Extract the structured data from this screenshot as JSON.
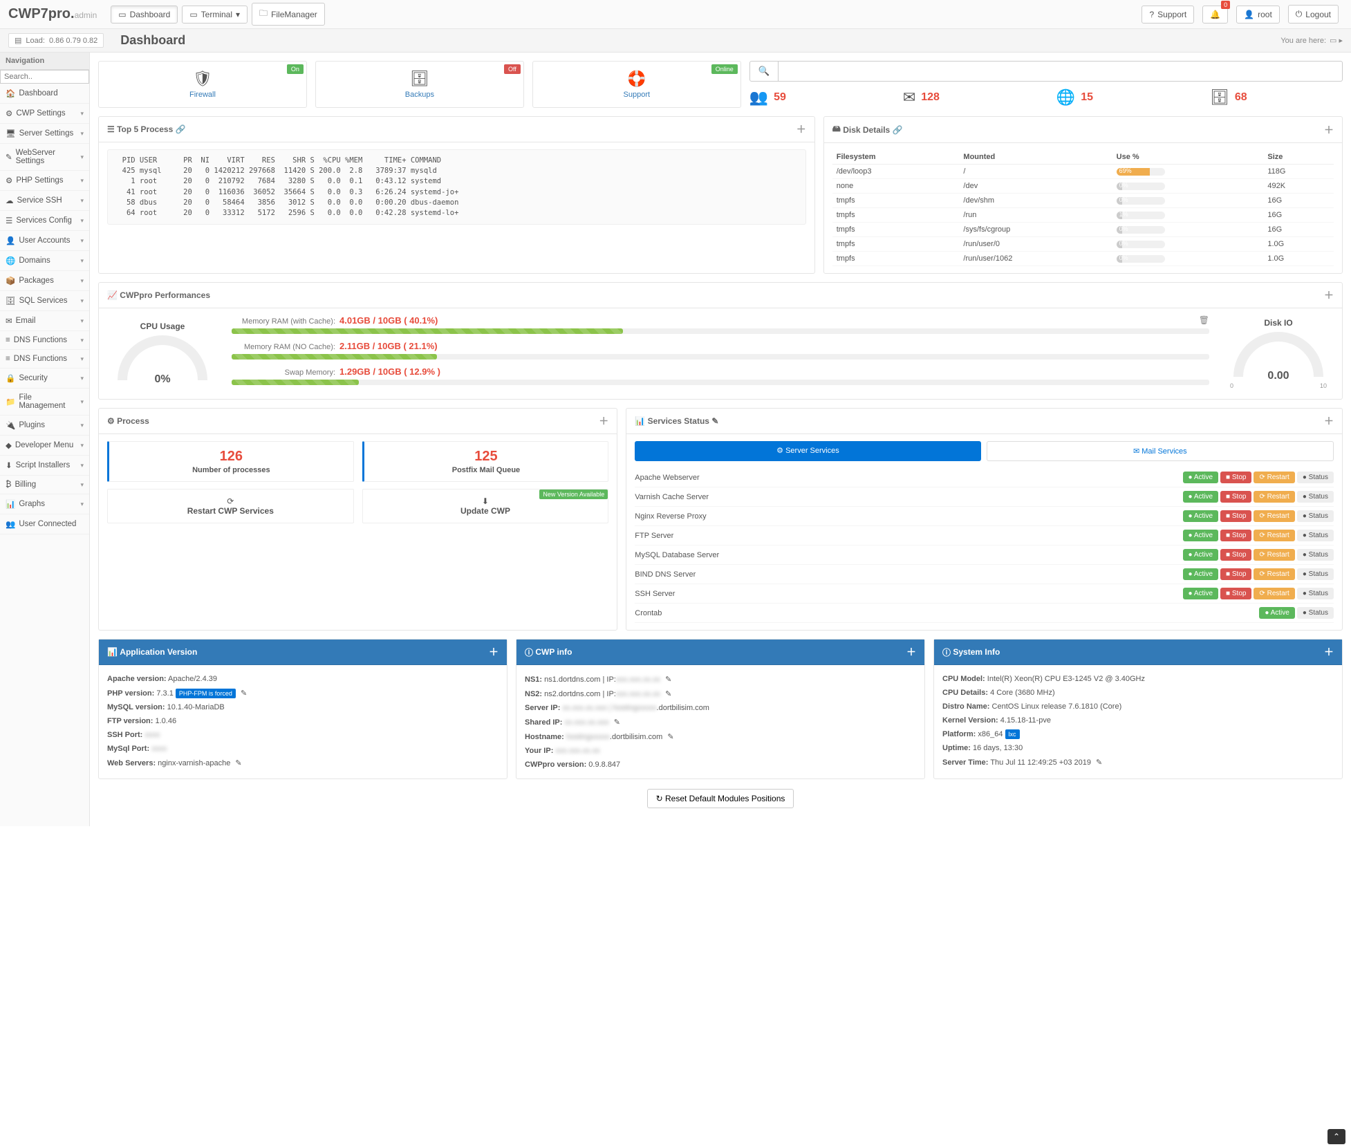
{
  "brand": {
    "main": "CWP7pro.",
    "sub": "admin"
  },
  "topnav": {
    "dashboard": "Dashboard",
    "terminal": "Terminal",
    "filemanager": "FileManager",
    "support": "Support",
    "user": "root",
    "logout": "Logout",
    "notif_count": "0"
  },
  "load": {
    "label": "Load:",
    "values": "0.86  0.79  0.82"
  },
  "page_title": "Dashboard",
  "breadcrumb": "You are here:",
  "sidebar": {
    "search_ph": "Search..",
    "nav_label": "Navigation",
    "items": [
      {
        "label": "Dashboard",
        "icon": "🏠",
        "caret": false
      },
      {
        "label": "CWP Settings",
        "icon": "⚙",
        "caret": true
      },
      {
        "label": "Server Settings",
        "icon": "🖥",
        "caret": true
      },
      {
        "label": "WebServer Settings",
        "icon": "✎",
        "caret": true
      },
      {
        "label": "PHP Settings",
        "icon": "⚙",
        "caret": true
      },
      {
        "label": "Service SSH",
        "icon": "☁",
        "caret": true
      },
      {
        "label": "Services Config",
        "icon": "☰",
        "caret": true
      },
      {
        "label": "User Accounts",
        "icon": "👤",
        "caret": true
      },
      {
        "label": "Domains",
        "icon": "🌐",
        "caret": true
      },
      {
        "label": "Packages",
        "icon": "📦",
        "caret": true
      },
      {
        "label": "SQL Services",
        "icon": "🗄",
        "caret": true
      },
      {
        "label": "Email",
        "icon": "✉",
        "caret": true
      },
      {
        "label": "DNS Functions",
        "icon": "≡",
        "caret": true
      },
      {
        "label": "DNS Functions",
        "icon": "≡",
        "caret": true
      },
      {
        "label": "Security",
        "icon": "🔒",
        "caret": true
      },
      {
        "label": "File Management",
        "icon": "📁",
        "caret": true
      },
      {
        "label": "Plugins",
        "icon": "🔌",
        "caret": true
      },
      {
        "label": "Developer Menu",
        "icon": "◆",
        "caret": true
      },
      {
        "label": "Script Installers",
        "icon": "⬇",
        "caret": true
      },
      {
        "label": "Billing",
        "icon": "₿",
        "caret": true
      },
      {
        "label": "Graphs",
        "icon": "📊",
        "caret": true
      },
      {
        "label": "User Connected",
        "icon": "👥",
        "caret": false
      }
    ]
  },
  "hero": {
    "firewall": {
      "label": "Firewall",
      "status": "On",
      "status_color": "#5cb85c"
    },
    "backups": {
      "label": "Backups",
      "status": "Off",
      "status_color": "#d9534f"
    },
    "support": {
      "label": "Support",
      "status": "Online",
      "status_color": "#5cb85c"
    }
  },
  "stats": {
    "users": "59",
    "mail": "128",
    "domains": "15",
    "db": "68"
  },
  "top5": {
    "title": "Top 5 Process",
    "text": "  PID USER      PR  NI    VIRT    RES    SHR S  %CPU %MEM     TIME+ COMMAND\n  425 mysql     20   0 1420212 297668  11420 S 200.0  2.8   3789:37 mysqld\n    1 root      20   0  210792   7684   3280 S   0.0  0.1   0:43.12 systemd\n   41 root      20   0  116036  36052  35664 S   0.0  0.3   6:26.24 systemd-jo+\n   58 dbus      20   0   58464   3856   3012 S   0.0  0.0   0:00.20 dbus-daemon\n   64 root      20   0   33312   5172   2596 S   0.0  0.0   0:42.28 systemd-lo+"
  },
  "disk": {
    "title": "Disk Details",
    "headers": [
      "Filesystem",
      "Mounted",
      "Use %",
      "Size"
    ],
    "rows": [
      {
        "fs": "/dev/loop3",
        "mnt": "/",
        "pct": 69,
        "pct_color": "#f0ad4e",
        "size": "118G"
      },
      {
        "fs": "none",
        "mnt": "/dev",
        "pct": 0,
        "pct_color": "#ccc",
        "size": "492K"
      },
      {
        "fs": "tmpfs",
        "mnt": "/dev/shm",
        "pct": 0,
        "pct_color": "#ccc",
        "size": "16G"
      },
      {
        "fs": "tmpfs",
        "mnt": "/run",
        "pct": 1,
        "pct_color": "#ccc",
        "size": "16G"
      },
      {
        "fs": "tmpfs",
        "mnt": "/sys/fs/cgroup",
        "pct": 0,
        "pct_color": "#ccc",
        "size": "16G"
      },
      {
        "fs": "tmpfs",
        "mnt": "/run/user/0",
        "pct": 0,
        "pct_color": "#ccc",
        "size": "1.0G"
      },
      {
        "fs": "tmpfs",
        "mnt": "/run/user/1062",
        "pct": 0,
        "pct_color": "#ccc",
        "size": "1.0G"
      }
    ]
  },
  "perf": {
    "title": "CWPpro Performances",
    "cpu_title": "CPU Usage",
    "cpu_val": "0%",
    "ram_cache_lbl": "Memory RAM (with Cache):",
    "ram_cache_val": "4.01GB / 10GB ( 40.1%)",
    "ram_cache_pct": 40,
    "ram_nocache_lbl": "Memory RAM (NO Cache):",
    "ram_nocache_val": "2.11GB / 10GB ( 21.1%)",
    "ram_nocache_pct": 21,
    "swap_lbl": "Swap Memory:",
    "swap_val": "1.29GB / 10GB ( 12.9% )",
    "swap_pct": 13,
    "diskio_title": "Disk IO",
    "diskio_val": "0.00",
    "diskio_min": "0",
    "diskio_max": "10"
  },
  "process": {
    "title": "Process",
    "num_proc": "126",
    "num_proc_lbl": "Number of processes",
    "queue": "125",
    "queue_lbl": "Postfix Mail Queue",
    "restart_lbl": "Restart CWP Services",
    "update_lbl": "Update CWP",
    "update_badge": "New Version Available"
  },
  "services": {
    "title": "Services Status",
    "tab_server": "Server Services",
    "tab_mail": "Mail Services",
    "rows": [
      "Apache Webserver",
      "Varnish Cache Server",
      "Nginx Reverse Proxy",
      "FTP Server",
      "MySQL Database Server",
      "BIND DNS Server",
      "SSH Server",
      "Crontab"
    ],
    "active": "Active",
    "stop": "Stop",
    "restart": "Restart",
    "status": "Status"
  },
  "appver": {
    "title": "Application Version",
    "lines": {
      "apache_l": "Apache version:",
      "apache_v": "Apache/2.4.39",
      "php_l": "PHP version:",
      "php_v": "7.3.1",
      "php_badge": "PHP-FPM is forced",
      "mysql_l": "MySQL version:",
      "mysql_v": "10.1.40-MariaDB",
      "ftp_l": "FTP version:",
      "ftp_v": "1.0.46",
      "ssh_l": "SSH Port:",
      "ssh_v": "xxxx",
      "msql_l": "MySql Port:",
      "msql_v": "xxxx",
      "ws_l": "Web Servers:",
      "ws_v": "nginx-varnish-apache"
    }
  },
  "cwpinfo": {
    "title": "CWP info",
    "ns1_l": "NS1:",
    "ns1_v": "ns1.dortdns.com | IP:",
    "ns1_blur": "xxx.xxx.xx.xx",
    "ns2_l": "NS2:",
    "ns2_v": "ns2.dortdns.com | IP:",
    "ns2_blur": "xxx.xxx.xx.xx",
    "srvip_l": "Server IP:",
    "srvip_blur": "xx.xxx.xx.xxx | hostingxxxxx",
    "srvip_tail": ".dortbilisim.com",
    "ship_l": "Shared IP:",
    "ship_blur": "xx.xxx.xx.xxx",
    "host_l": "Hostname:",
    "host_blur": "hostingxxxxx",
    "host_tail": ".dortbilisim.com",
    "yip_l": "Your IP:",
    "yip_blur": "xxx.xxx.xx.xx",
    "ver_l": "CWPpro version:",
    "ver_v": "0.9.8.847"
  },
  "sysinfo": {
    "title": "System Info",
    "cpu_l": "CPU Model:",
    "cpu_v": "Intel(R) Xeon(R) CPU E3-1245 V2 @ 3.40GHz",
    "cpud_l": "CPU Details:",
    "cpud_v": "4 Core (3680 MHz)",
    "distro_l": "Distro Name:",
    "distro_v": "CentOS Linux release 7.6.1810 (Core)",
    "kernel_l": "Kernel Version:",
    "kernel_v": "4.15.18-11-pve",
    "plat_l": "Platform:",
    "plat_v": "x86_64",
    "plat_badge": "lxc",
    "up_l": "Uptime:",
    "up_v": "16 days, 13:30",
    "time_l": "Server Time:",
    "time_v": "Thu Jul 11 12:49:25 +03 2019"
  },
  "reset_btn": "Reset Default Modules Positions"
}
